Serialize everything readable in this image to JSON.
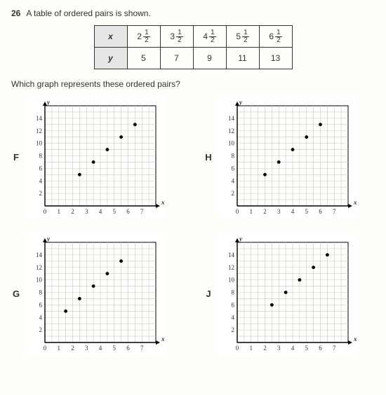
{
  "question": {
    "number": "26",
    "prompt": "A table of ordered pairs is shown.",
    "prompt2": "Which graph represents these ordered pairs?"
  },
  "table": {
    "row_labels": [
      "x",
      "y"
    ],
    "x_values": [
      {
        "whole": "2",
        "n": "1",
        "d": "2"
      },
      {
        "whole": "3",
        "n": "1",
        "d": "2"
      },
      {
        "whole": "4",
        "n": "1",
        "d": "2"
      },
      {
        "whole": "5",
        "n": "1",
        "d": "2"
      },
      {
        "whole": "6",
        "n": "1",
        "d": "2"
      }
    ],
    "y_values": [
      "5",
      "7",
      "9",
      "11",
      "13"
    ]
  },
  "chart_common": {
    "type": "scatter",
    "xlabel": "x",
    "ylabel": "y",
    "xlim": [
      0,
      8
    ],
    "ylim": [
      0,
      16
    ],
    "xtick_labels": [
      "0",
      "1",
      "2",
      "3",
      "4",
      "5",
      "6",
      "7"
    ],
    "ytick_labels": [
      "2",
      "4",
      "6",
      "8",
      "10",
      "12",
      "14"
    ],
    "grid_color": "#c8c8c0",
    "axis_color": "#000000",
    "background_color": "#ffffff",
    "point_color": "#000000",
    "point_radius": 2.4,
    "label_fontsize": 9,
    "tick_fontsize": 9
  },
  "charts": [
    {
      "letter": "F",
      "points": [
        [
          2.5,
          5
        ],
        [
          3.5,
          7
        ],
        [
          4.5,
          9
        ],
        [
          5.5,
          11
        ],
        [
          6.5,
          13
        ]
      ]
    },
    {
      "letter": "H",
      "points": [
        [
          2,
          5
        ],
        [
          3,
          7
        ],
        [
          4,
          9
        ],
        [
          5,
          11
        ],
        [
          6,
          13
        ]
      ]
    },
    {
      "letter": "G",
      "points": [
        [
          1.5,
          5
        ],
        [
          2.5,
          7
        ],
        [
          3.5,
          9
        ],
        [
          4.5,
          11
        ],
        [
          5.5,
          13
        ]
      ]
    },
    {
      "letter": "J",
      "points": [
        [
          2.5,
          6
        ],
        [
          3.5,
          8
        ],
        [
          4.5,
          10
        ],
        [
          5.5,
          12
        ],
        [
          6.5,
          14
        ]
      ]
    }
  ]
}
